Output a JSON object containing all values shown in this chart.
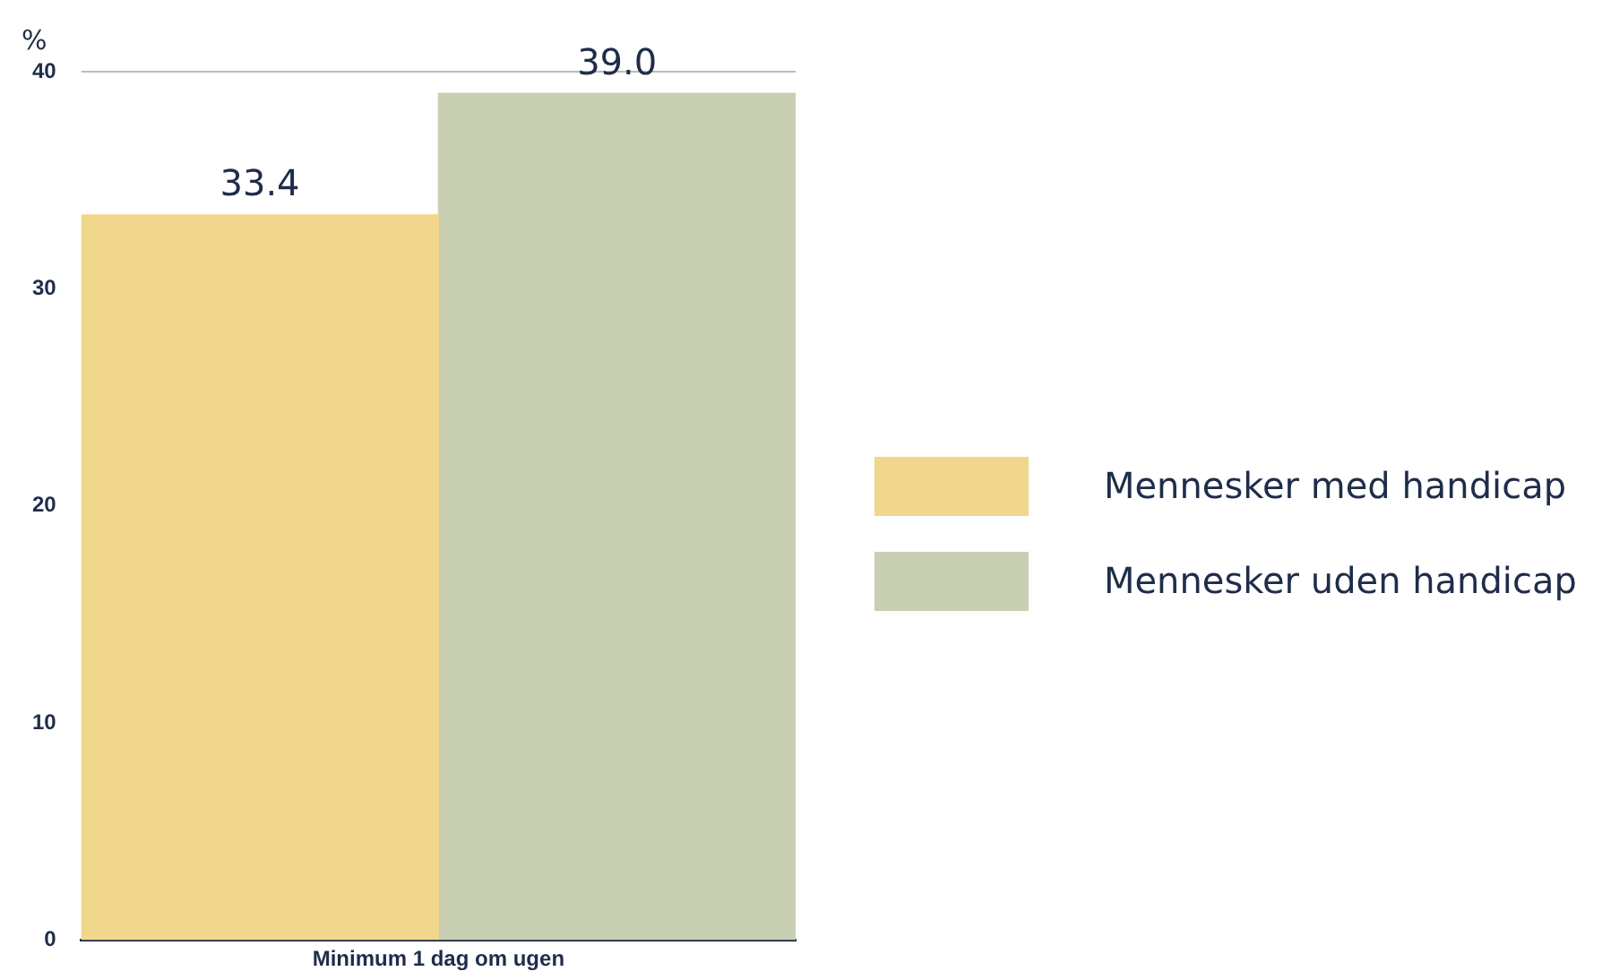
{
  "chart_data": {
    "type": "bar",
    "ylabel": "%",
    "categories": [
      "Minimum 1 dag om ugen"
    ],
    "series": [
      {
        "name": "Mennesker med handicap",
        "color": "#f0d78c",
        "values": [
          33.4
        ],
        "value_labels": [
          "33.4"
        ]
      },
      {
        "name": "Mennesker uden handicap",
        "color": "#c9cfb3",
        "values": [
          39.0
        ],
        "value_labels": [
          "39.0"
        ]
      }
    ],
    "ylim": [
      0,
      40
    ],
    "yticks": [
      0,
      10,
      20,
      30,
      40
    ],
    "legend": "right",
    "ref_lines": [
      {
        "axis": "y",
        "value": 40,
        "color": "#bbbbbb"
      }
    ]
  }
}
